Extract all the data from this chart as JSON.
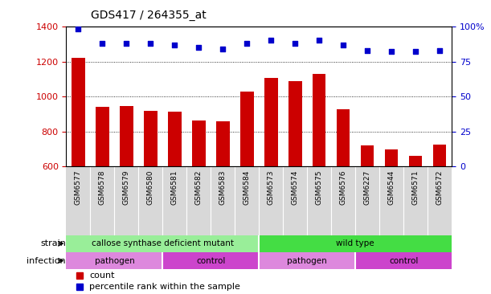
{
  "title": "GDS417 / 264355_at",
  "samples": [
    "GSM6577",
    "GSM6578",
    "GSM6579",
    "GSM6580",
    "GSM6581",
    "GSM6582",
    "GSM6583",
    "GSM6584",
    "GSM6573",
    "GSM6574",
    "GSM6575",
    "GSM6576",
    "GSM6227",
    "GSM6544",
    "GSM6571",
    "GSM6572"
  ],
  "counts": [
    1220,
    940,
    945,
    920,
    915,
    865,
    860,
    1030,
    1105,
    1090,
    1130,
    925,
    720,
    700,
    660,
    725
  ],
  "percentiles": [
    98,
    88,
    88,
    88,
    87,
    85,
    84,
    88,
    90,
    88,
    90,
    87,
    83,
    82,
    82,
    83
  ],
  "bar_color": "#cc0000",
  "dot_color": "#0000cc",
  "ylim_left": [
    600,
    1400
  ],
  "ylim_right": [
    0,
    100
  ],
  "yticks_left": [
    600,
    800,
    1000,
    1200,
    1400
  ],
  "yticks_right": [
    0,
    25,
    50,
    75,
    100
  ],
  "grid_values": [
    800,
    1000,
    1200
  ],
  "strain_groups": [
    {
      "label": "callose synthase deficient mutant",
      "start": 0,
      "end": 8,
      "color": "#99ee99"
    },
    {
      "label": "wild type",
      "start": 8,
      "end": 16,
      "color": "#44dd44"
    }
  ],
  "infection_groups": [
    {
      "label": "pathogen",
      "start": 0,
      "end": 4,
      "color": "#dd88dd"
    },
    {
      "label": "control",
      "start": 4,
      "end": 8,
      "color": "#cc44cc"
    },
    {
      "label": "pathogen",
      "start": 8,
      "end": 12,
      "color": "#dd88dd"
    },
    {
      "label": "control",
      "start": 12,
      "end": 16,
      "color": "#cc44cc"
    }
  ],
  "legend_count_label": "count",
  "legend_percentile_label": "percentile rank within the sample",
  "label_strain": "strain",
  "label_infection": "infection",
  "axis_color_left": "#cc0000",
  "axis_color_right": "#0000cc",
  "right_ytick_labels": [
    "0",
    "25",
    "50",
    "75",
    "100%"
  ]
}
